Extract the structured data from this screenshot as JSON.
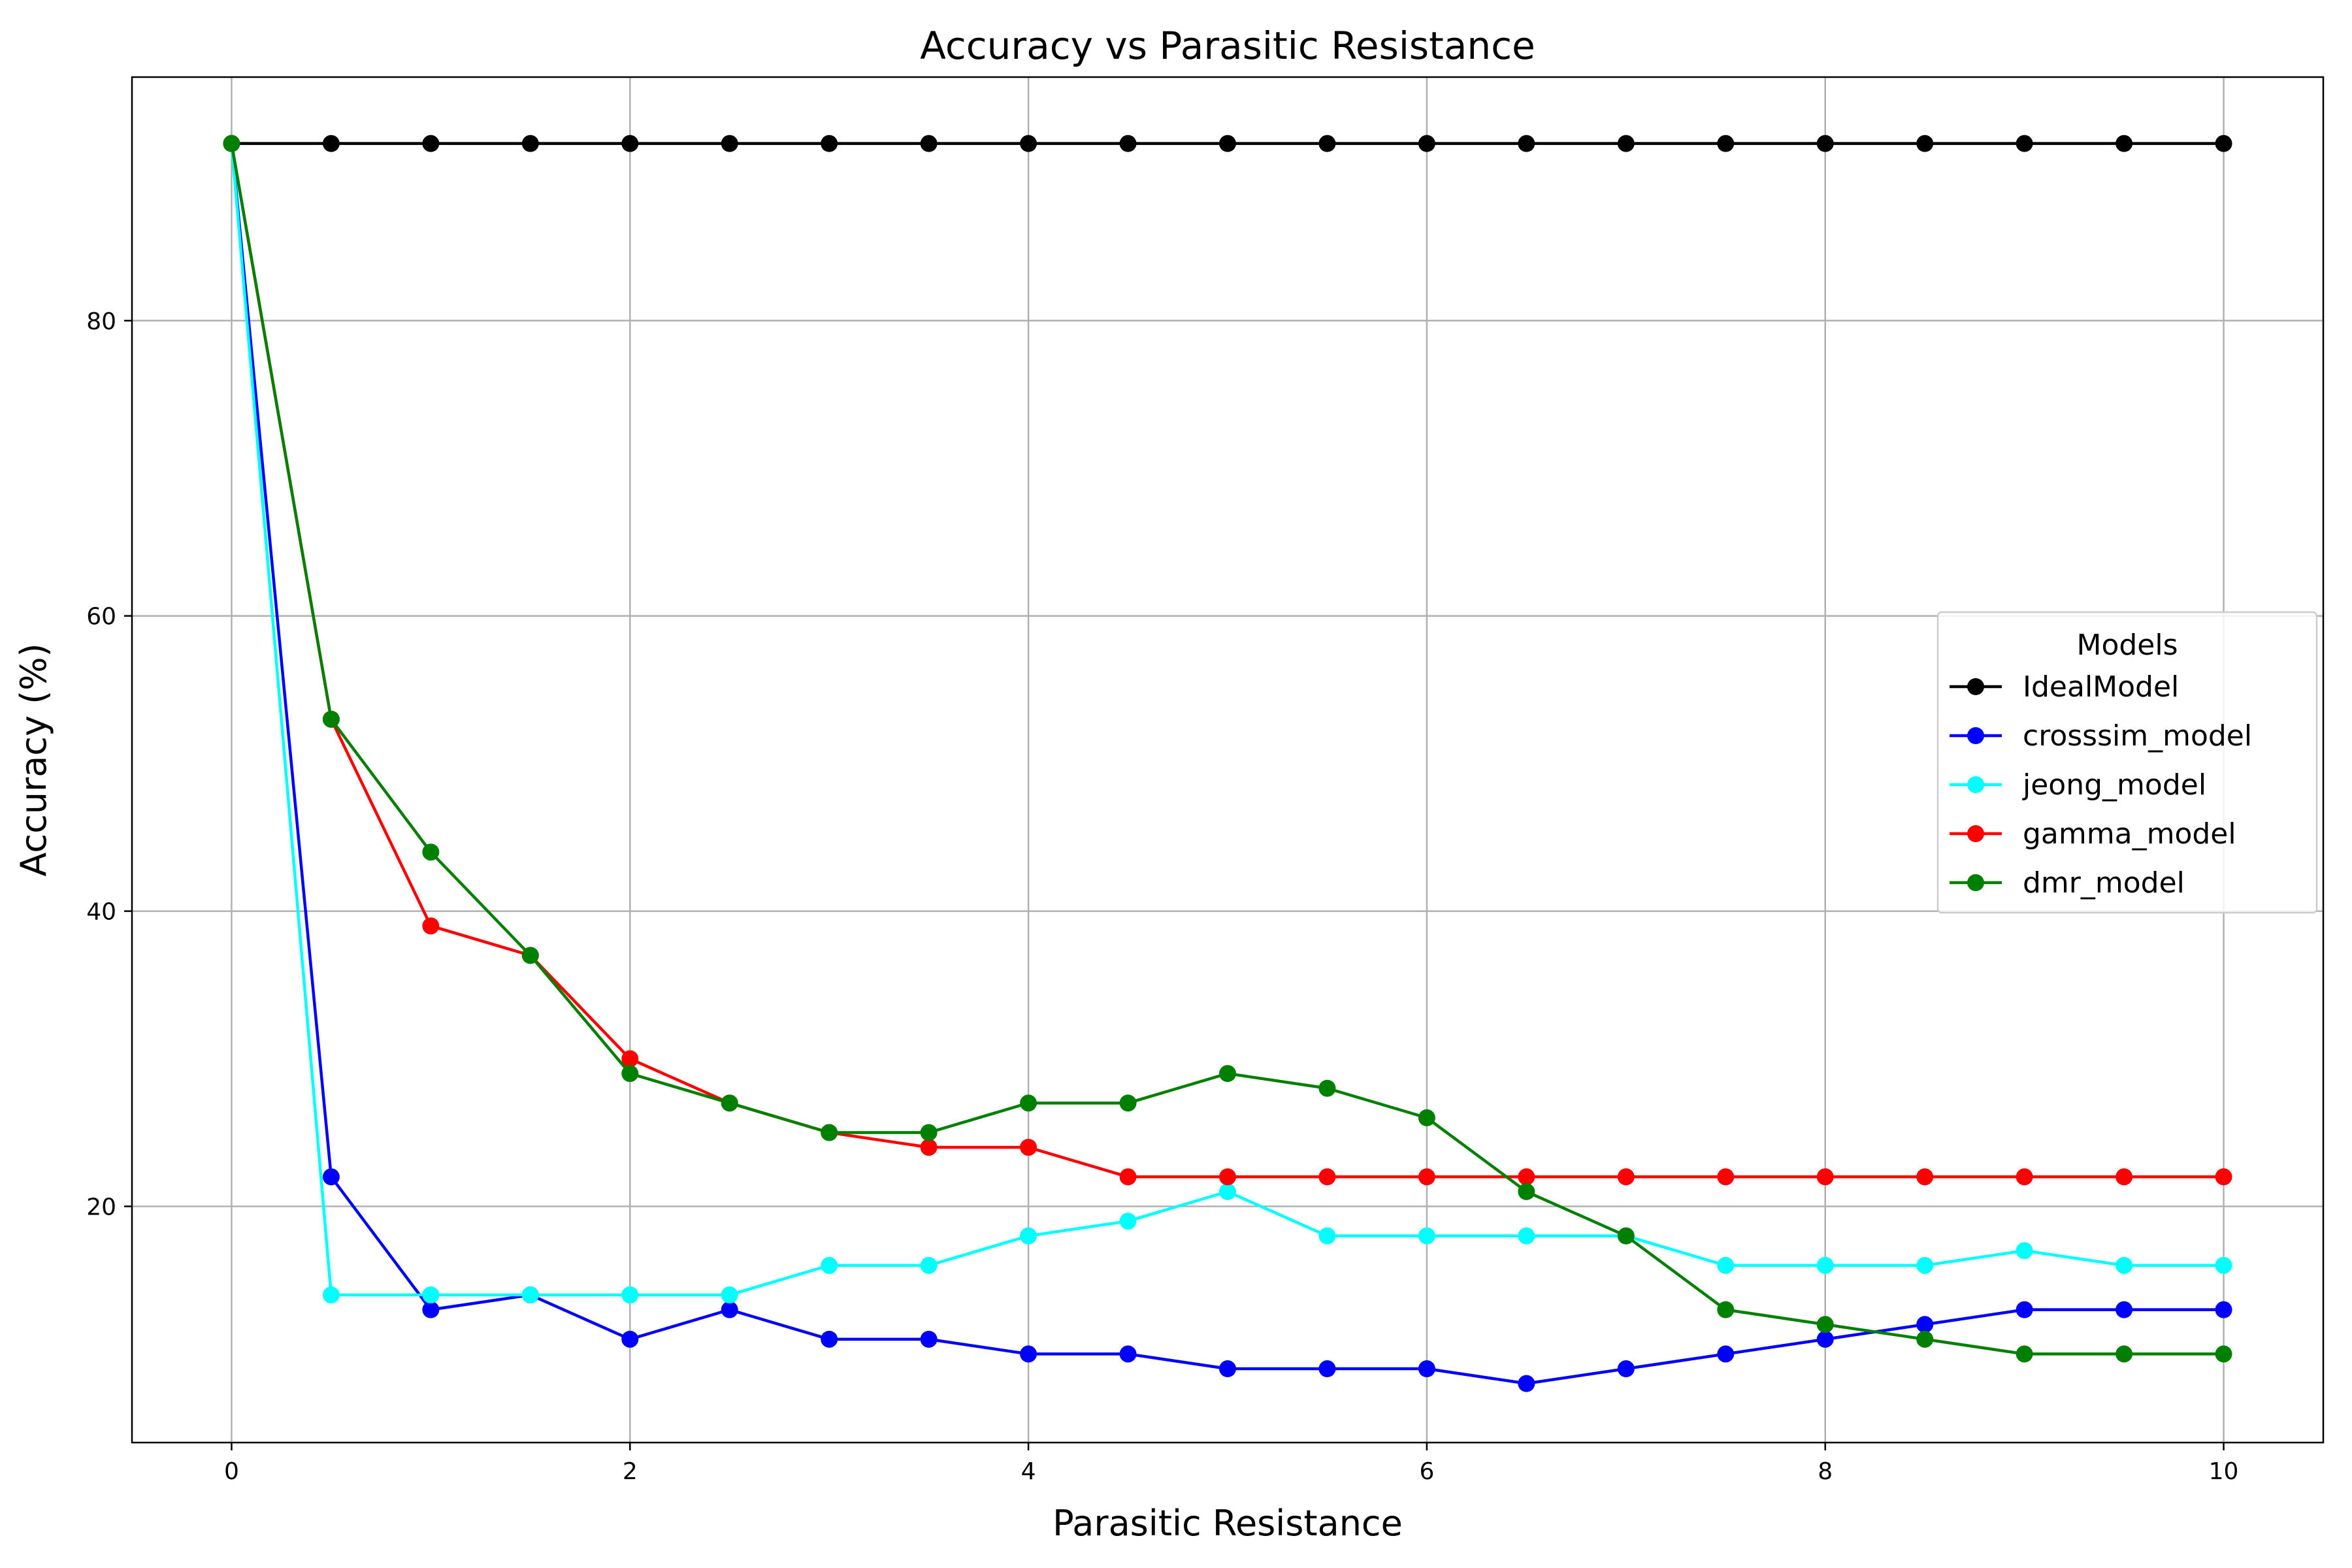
{
  "chart_data": {
    "type": "line",
    "title": "Accuracy vs Parasitic Resistance",
    "xlabel": "Parasitic Resistance",
    "ylabel": "Accuracy (%)",
    "xlim": [
      -0.5,
      10.5
    ],
    "ylim": [
      4,
      96.5
    ],
    "xticks": [
      0,
      2,
      4,
      6,
      8,
      10
    ],
    "yticks": [
      20,
      40,
      60,
      80
    ],
    "grid": true,
    "legend": {
      "title": "Models",
      "placement": "center-right"
    },
    "x": [
      0,
      0.5,
      1,
      1.5,
      2,
      2.5,
      3,
      3.5,
      4,
      4.5,
      5,
      5.5,
      6,
      6.5,
      7,
      7.5,
      8,
      8.5,
      9,
      9.5,
      10
    ],
    "series": [
      {
        "name": "IdealModel",
        "color": "#000000",
        "values": [
          92,
          92,
          92,
          92,
          92,
          92,
          92,
          92,
          92,
          92,
          92,
          92,
          92,
          92,
          92,
          92,
          92,
          92,
          92,
          92,
          92
        ]
      },
      {
        "name": "crosssim_model",
        "color": "#0000ff",
        "values": [
          92,
          22,
          13,
          14,
          11,
          13,
          11,
          11,
          10,
          10,
          9,
          9,
          9,
          8,
          9,
          10,
          11,
          12,
          13,
          13,
          13
        ]
      },
      {
        "name": "jeong_model",
        "color": "#00ffff",
        "values": [
          92,
          14,
          14,
          14,
          14,
          14,
          16,
          16,
          18,
          19,
          21,
          18,
          18,
          18,
          18,
          16,
          16,
          16,
          17,
          16,
          16
        ]
      },
      {
        "name": "gamma_model",
        "color": "#ff0000",
        "values": [
          92,
          53,
          39,
          37,
          30,
          27,
          25,
          24,
          24,
          22,
          22,
          22,
          22,
          22,
          22,
          22,
          22,
          22,
          22,
          22,
          22
        ]
      },
      {
        "name": "dmr_model",
        "color": "#008000",
        "values": [
          92,
          53,
          44,
          37,
          29,
          27,
          25,
          25,
          27,
          27,
          29,
          28,
          26,
          21,
          18,
          13,
          12,
          11,
          10,
          10,
          10
        ]
      }
    ]
  }
}
